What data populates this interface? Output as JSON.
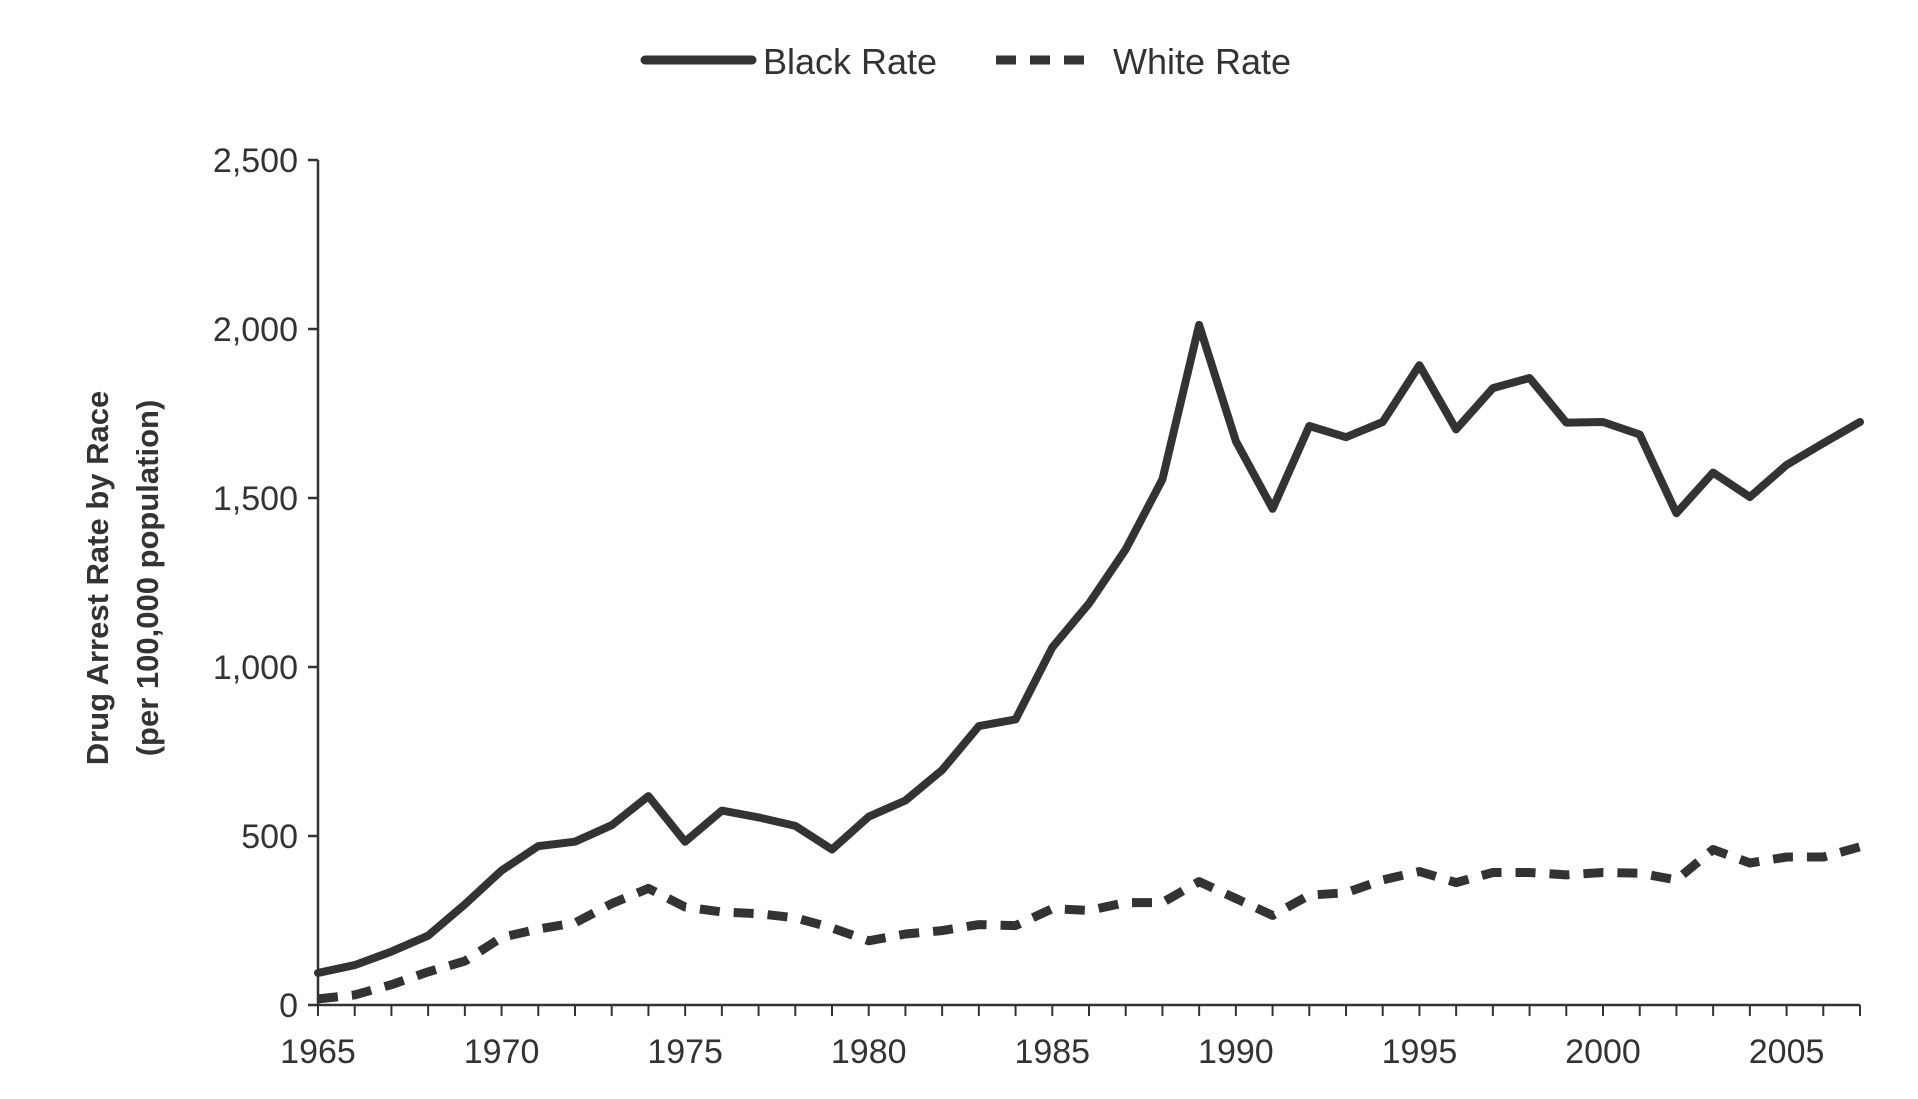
{
  "chart_data": {
    "type": "line",
    "title": "",
    "xlabel": "",
    "ylabel_lines": [
      "Drug Arrest Rate by Race",
      "(per 100,000 population)"
    ],
    "xlim": [
      1965,
      2007
    ],
    "ylim": [
      0,
      2500
    ],
    "x_ticks": [
      1965,
      1970,
      1975,
      1980,
      1985,
      1990,
      1995,
      2000,
      2005
    ],
    "x_tick_labels": [
      "1965",
      "1970",
      "1975",
      "1980",
      "1985",
      "1990",
      "1995",
      "2000",
      "2005"
    ],
    "y_ticks": [
      0,
      500,
      1000,
      1500,
      2000,
      2500
    ],
    "y_tick_labels": [
      "0",
      "500",
      "1,000",
      "1,500",
      "2,000",
      "2,500"
    ],
    "grid": false,
    "legend_position": "top-center",
    "line_color": "#333336",
    "x": [
      1965,
      1966,
      1967,
      1968,
      1969,
      1970,
      1971,
      1972,
      1973,
      1974,
      1975,
      1976,
      1977,
      1978,
      1979,
      1980,
      1981,
      1982,
      1983,
      1984,
      1985,
      1986,
      1987,
      1988,
      1989,
      1990,
      1991,
      1992,
      1993,
      1994,
      1995,
      1996,
      1997,
      1998,
      1999,
      2000,
      2001,
      2002,
      2003,
      2004,
      2005,
      2006,
      2007
    ],
    "series": [
      {
        "name": "Black Rate",
        "style": "solid",
        "values": [
          95,
          118,
          158,
          205,
          298,
          398,
          470,
          483,
          532,
          618,
          483,
          575,
          555,
          530,
          460,
          557,
          605,
          695,
          825,
          845,
          1058,
          1188,
          1348,
          1555,
          2012,
          1668,
          1468,
          1713,
          1680,
          1725,
          1893,
          1703,
          1825,
          1855,
          1723,
          1725,
          1688,
          1455,
          1575,
          1503,
          1598,
          1662,
          1725
        ]
      },
      {
        "name": "White Rate",
        "style": "dashed",
        "values": [
          18,
          30,
          60,
          98,
          130,
          200,
          225,
          243,
          300,
          345,
          290,
          275,
          270,
          258,
          228,
          190,
          210,
          220,
          238,
          235,
          285,
          280,
          303,
          303,
          365,
          315,
          265,
          325,
          332,
          370,
          395,
          362,
          392,
          392,
          385,
          392,
          390,
          370,
          460,
          420,
          438,
          438,
          468
        ]
      }
    ]
  }
}
